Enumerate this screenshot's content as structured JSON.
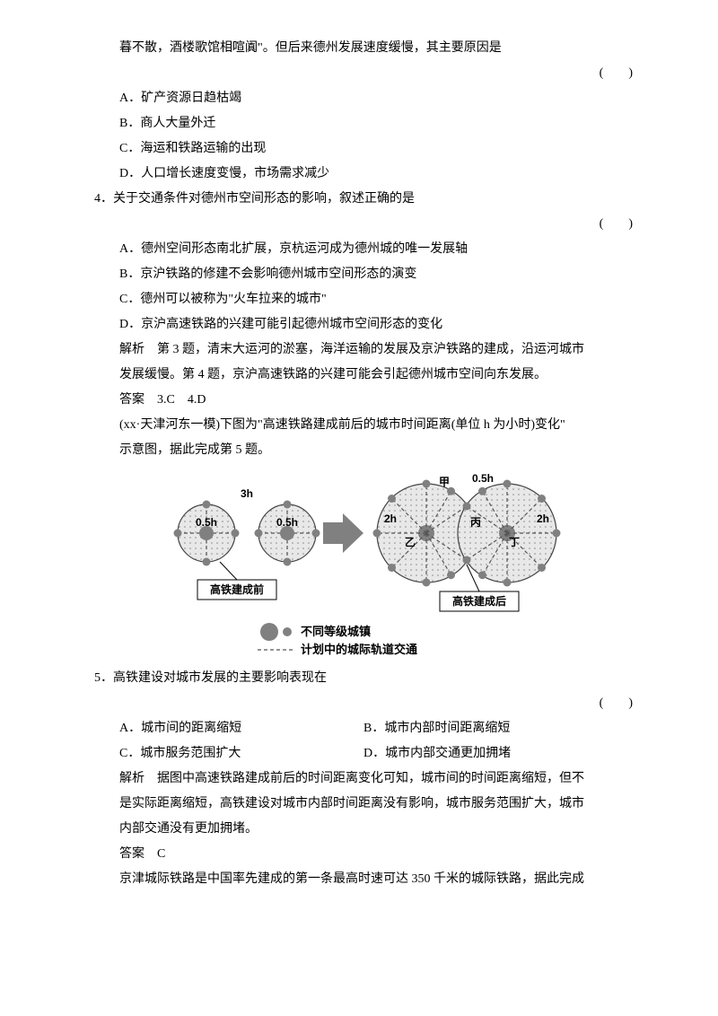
{
  "l1": "暮不散，酒楼歌馆相喧阗\"。但后来德州发展速度缓慢，其主要原因是",
  "paren": "(　　)",
  "q3": {
    "a": "A．矿产资源日趋枯竭",
    "b": "B．商人大量外迁",
    "c": "C．海运和铁路运输的出现",
    "d": "D．人口增长速度变慢，市场需求减少"
  },
  "q4": {
    "stem": "4．关于交通条件对德州市空间形态的影响，叙述正确的是",
    "a": "A．德州空间形态南北扩展，京杭运河成为德州城的唯一发展轴",
    "b": "B．京沪铁路的修建不会影响德州城市空间形态的演变",
    "c": "C．德州可以被称为\"火车拉来的城市\"",
    "d": "D．京沪高速铁路的兴建可能引起德州城市空间形态的变化",
    "expl1": "解析　第 3 题，清末大运河的淤塞，海洋运输的发展及京沪铁路的建成，沿运河城市",
    "expl2": "发展缓慢。第 4 题，京沪高速铁路的兴建可能会引起德州城市空间向东发展。",
    "ans": "答案　3.C　4.D"
  },
  "intro5_1": "(xx·天津河东一模)下图为\"高速铁路建成前后的城市时间距离(单位 h 为小时)变化\"",
  "intro5_2": "示意图，据此完成第 5 题。",
  "diagram": {
    "label_before_05h_left": "0.5h",
    "label_before_05h_right": "0.5h",
    "label_before_3h": "3h",
    "label_before_box": "高铁建成前",
    "label_after_05h": "0.5h",
    "label_after_2h_left": "2h",
    "label_after_2h_right": "2h",
    "label_after_jia": "甲",
    "label_after_yi": "乙",
    "label_after_bing": "丙",
    "label_after_ding": "丁",
    "label_after_box": "高铁建成后",
    "legend1": "不同等级城镇",
    "legend2": "计划中的城际轨道交通",
    "colors": {
      "node_fill": "#808080",
      "circle_stroke": "#444444",
      "circle_fill": "#dcdcdc",
      "dash": "#555555",
      "arrow_fill": "#808080",
      "box_fill": "#ffffff",
      "box_stroke": "#000000",
      "text": "#000000"
    }
  },
  "q5": {
    "stem": "5．高铁建设对城市发展的主要影响表现在",
    "a": "A．城市间的距离缩短",
    "b": "B．城市内部时间距离缩短",
    "c": "C．城市服务范围扩大",
    "d": "D．城市内部交通更加拥堵",
    "expl1": "解析　据图中高速铁路建成前后的时间距离变化可知，城市间的时间距离缩短，但不",
    "expl2": "是实际距离缩短，高铁建设对城市内部时间距离没有影响，城市服务范围扩大，城市",
    "expl3": "内部交通没有更加拥堵。",
    "ans": "答案　C"
  },
  "last": "京津城际铁路是中国率先建成的第一条最高时速可达 350 千米的城际铁路，据此完成"
}
